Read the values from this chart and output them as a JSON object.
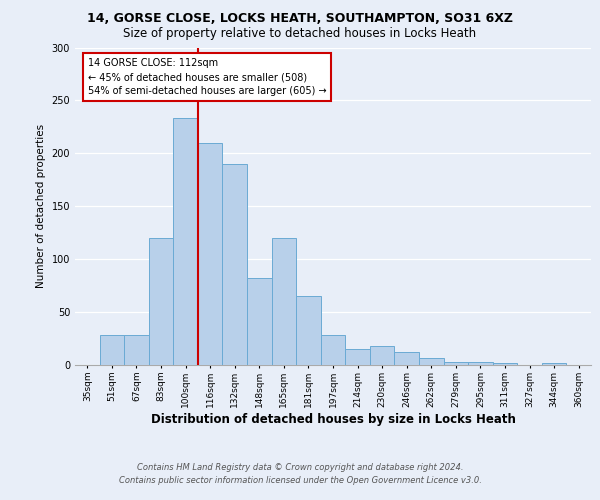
{
  "title_line1": "14, GORSE CLOSE, LOCKS HEATH, SOUTHAMPTON, SO31 6XZ",
  "title_line2": "Size of property relative to detached houses in Locks Heath",
  "xlabel": "Distribution of detached houses by size in Locks Heath",
  "ylabel": "Number of detached properties",
  "categories": [
    "35sqm",
    "51sqm",
    "67sqm",
    "83sqm",
    "100sqm",
    "116sqm",
    "132sqm",
    "148sqm",
    "165sqm",
    "181sqm",
    "197sqm",
    "214sqm",
    "230sqm",
    "246sqm",
    "262sqm",
    "279sqm",
    "295sqm",
    "311sqm",
    "327sqm",
    "344sqm",
    "360sqm"
  ],
  "values": [
    0,
    28,
    28,
    120,
    233,
    210,
    190,
    82,
    120,
    65,
    28,
    15,
    18,
    12,
    7,
    3,
    3,
    2,
    0,
    2,
    0
  ],
  "bar_color": "#b8d0ea",
  "bar_edge_color": "#6aaad4",
  "vline_x": 4.5,
  "vline_color": "#cc0000",
  "annotation_text": "14 GORSE CLOSE: 112sqm\n← 45% of detached houses are smaller (508)\n54% of semi-detached houses are larger (605) →",
  "annotation_box_color": "#ffffff",
  "annotation_box_edge": "#cc0000",
  "ylim": [
    0,
    300
  ],
  "yticks": [
    0,
    50,
    100,
    150,
    200,
    250,
    300
  ],
  "footer_line1": "Contains HM Land Registry data © Crown copyright and database right 2024.",
  "footer_line2": "Contains public sector information licensed under the Open Government Licence v3.0.",
  "background_color": "#e8eef8",
  "plot_background": "#e8eef8",
  "title_fontsize": 9,
  "subtitle_fontsize": 8.5,
  "xlabel_fontsize": 8.5,
  "ylabel_fontsize": 7.5,
  "tick_fontsize": 6.5,
  "annot_fontsize": 7,
  "footer_fontsize": 6
}
